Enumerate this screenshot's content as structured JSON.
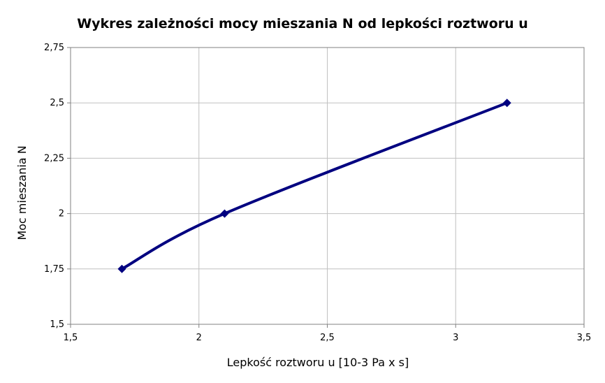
{
  "chart_data": {
    "type": "line",
    "title": "Wykres zależności mocy mieszania N od lepkości roztworu u",
    "xlabel": "Lepkość roztworu u [10-3 Pa x s]",
    "ylabel": "Moc mieszania N",
    "xlim": [
      1.5,
      3.5
    ],
    "ylim": [
      1.5,
      2.75
    ],
    "xticks": [
      1.5,
      2,
      2.5,
      3,
      3.5
    ],
    "yticks": [
      1.5,
      1.75,
      2,
      2.25,
      2.5,
      2.75
    ],
    "xtick_labels": [
      "1,5",
      "2",
      "2,5",
      "3",
      "3,5"
    ],
    "ytick_labels": [
      "1,5",
      "1,75",
      "2",
      "2,25",
      "2,5",
      "2,75"
    ],
    "grid": true,
    "series": [
      {
        "color": "#000080",
        "marker": "diamond",
        "smooth": true,
        "x": [
          1.7,
          2.1,
          3.2
        ],
        "y": [
          1.75,
          2.0,
          2.5
        ]
      }
    ]
  }
}
